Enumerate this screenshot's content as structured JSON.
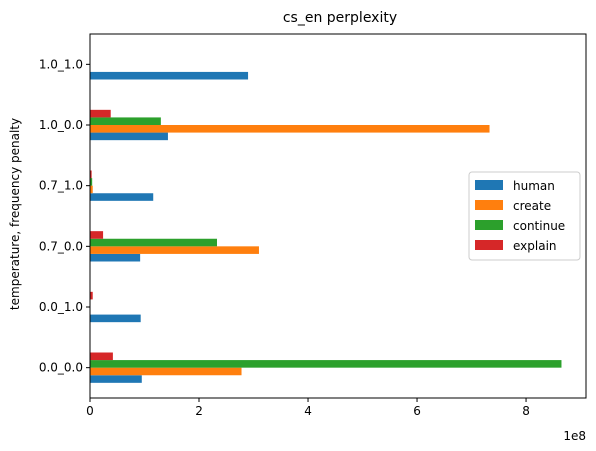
{
  "chart_data": {
    "type": "bar",
    "orientation": "horizontal",
    "title": "cs_en perplexity",
    "xlabel": "",
    "ylabel": "temperature, frequency penalty",
    "x_offset_label": "1e8",
    "xlim": [
      0,
      9.1
    ],
    "x_ticks": [
      0,
      2,
      4,
      6,
      8
    ],
    "x_tick_labels": [
      "0",
      "2",
      "4",
      "6",
      "8"
    ],
    "x_unit_note": "values in units of 1e8",
    "categories": [
      "0.0_0.0",
      "0.0_1.0",
      "0.7_0.0",
      "0.7_1.0",
      "1.0_0.0",
      "1.0_1.0"
    ],
    "series": [
      {
        "name": "human",
        "color": "#1f77b4",
        "values": [
          0.95,
          0.93,
          0.92,
          1.16,
          1.43,
          2.9
        ]
      },
      {
        "name": "create",
        "color": "#ff7f0e",
        "values": [
          2.78,
          0.0,
          3.1,
          0.05,
          7.33,
          0.0
        ]
      },
      {
        "name": "continue",
        "color": "#2ca02c",
        "values": [
          8.65,
          0.0,
          2.33,
          0.04,
          1.3,
          0.0
        ]
      },
      {
        "name": "explain",
        "color": "#d62728",
        "values": [
          0.42,
          0.05,
          0.24,
          0.03,
          0.38,
          0.0
        ]
      }
    ],
    "grid": false,
    "legend_position": "center-right"
  }
}
